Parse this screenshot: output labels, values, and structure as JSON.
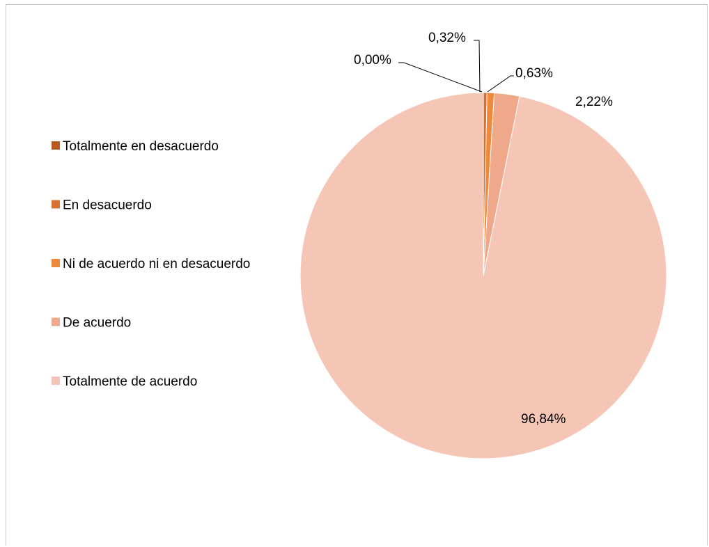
{
  "chart_data": {
    "type": "pie",
    "categories": [
      "Totalmente en desacuerdo",
      "En desacuerdo",
      "Ni de acuerdo ni en desacuerdo",
      "De acuerdo",
      "Totalmente de acuerdo"
    ],
    "values": [
      0.0,
      0.32,
      0.63,
      2.22,
      96.84
    ],
    "labels": [
      "0,00%",
      "0,32%",
      "0,63%",
      "2,22%",
      "96,84%"
    ],
    "colors": [
      "#b85a1e",
      "#d97030",
      "#ef8a3c",
      "#f0a88a",
      "#f5c6b6"
    ],
    "legend": "left"
  }
}
